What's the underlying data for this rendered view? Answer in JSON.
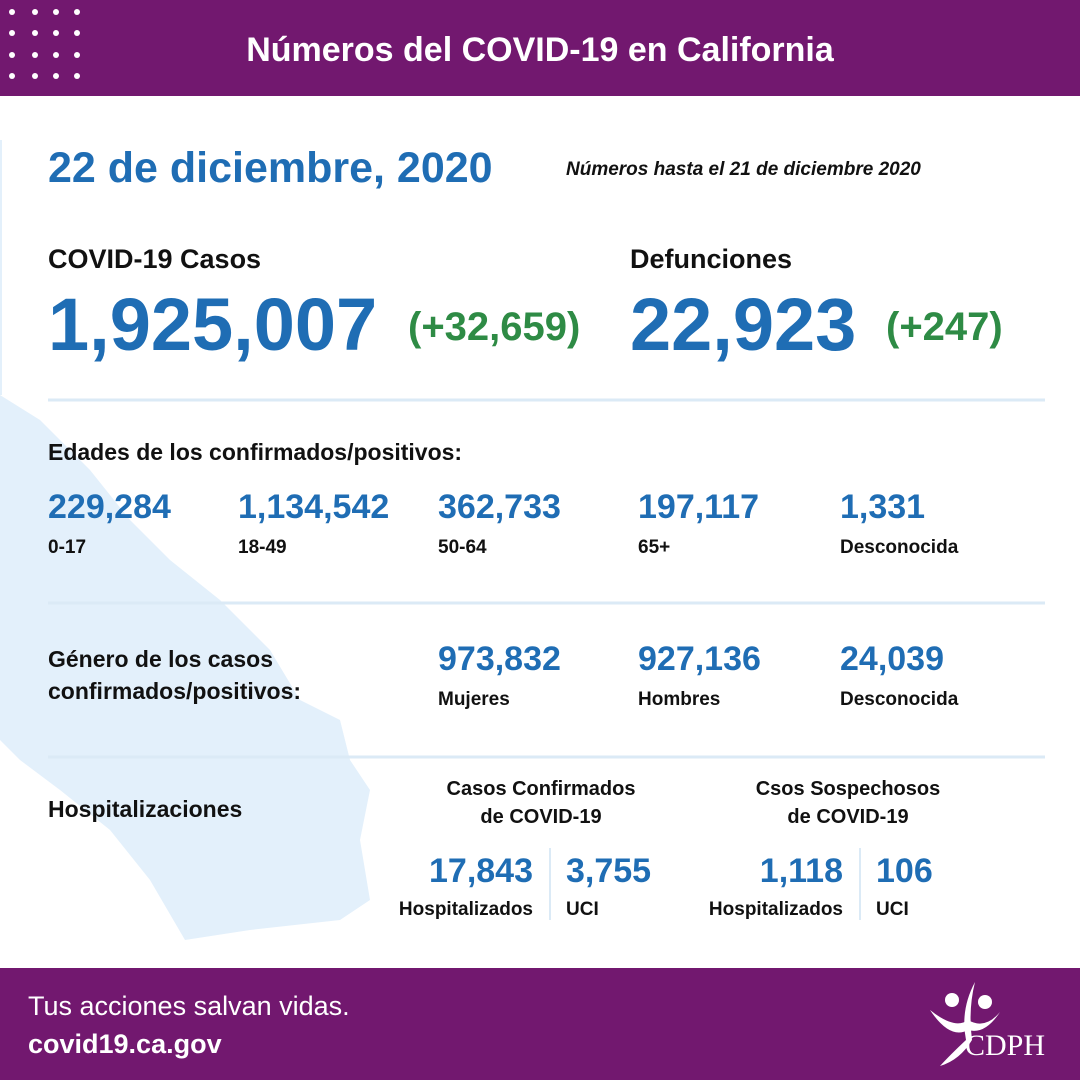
{
  "header": {
    "title": "Números del COVID-19 en California"
  },
  "date": "22 de diciembre, 2020",
  "as_of": "Números hasta el 21 de diciembre 2020",
  "cases": {
    "label": "COVID-19 Casos",
    "total": "1,925,007",
    "change": "(+32,659)"
  },
  "deaths": {
    "label": "Defunciones",
    "total": "22,923",
    "change": "(+247)"
  },
  "ages": {
    "title": "Edades de los confirmados/positivos:",
    "items": [
      {
        "value": "229,284",
        "label": "0-17"
      },
      {
        "value": "1,134,542",
        "label": "18-49"
      },
      {
        "value": "362,733",
        "label": "50-64"
      },
      {
        "value": "197,117",
        "label": "65+"
      },
      {
        "value": "1,331",
        "label": "Desconocida"
      }
    ]
  },
  "gender": {
    "title": [
      "Género de los casos",
      "confirmados/positivos:"
    ],
    "items": [
      {
        "value": "973,832",
        "label": "Mujeres"
      },
      {
        "value": "927,136",
        "label": "Hombres"
      },
      {
        "value": "24,039",
        "label": "Desconocida"
      }
    ]
  },
  "hospital": {
    "title": "Hospitalizaciones",
    "groups": [
      {
        "title": [
          "Casos Confirmados",
          "de COVID-19"
        ],
        "items": [
          {
            "value": "17,843",
            "label": "Hospitalizados"
          },
          {
            "value": "3,755",
            "label": "UCI"
          }
        ]
      },
      {
        "title": [
          "Csos Sospechosos",
          "de COVID-19"
        ],
        "items": [
          {
            "value": "1,118",
            "label": "Hospitalizados"
          },
          {
            "value": "106",
            "label": "UCI"
          }
        ]
      }
    ]
  },
  "footer": {
    "slogan": "Tus acciones salvan vidas.",
    "url": "covid19.ca.gov",
    "logo": "CDPH"
  }
}
